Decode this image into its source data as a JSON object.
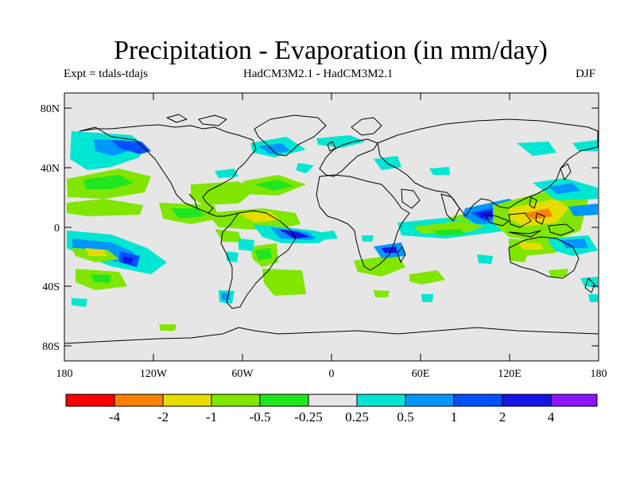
{
  "figure": {
    "title": "Precipitation - Evaporation (in mm/day)",
    "experiment": "Expt = tdals-tdajs",
    "models": "HadCM3M2.1 - HadCM3M2.1",
    "season": "DJF"
  },
  "map": {
    "projection": "cylindrical equidistant",
    "lon_range": [
      -180,
      180
    ],
    "lat_range": [
      -90,
      90
    ],
    "lat_ticks": [
      {
        "value": 80,
        "label": "80N"
      },
      {
        "value": 40,
        "label": "40N"
      },
      {
        "value": 0,
        "label": "0"
      },
      {
        "value": -40,
        "label": "40S"
      },
      {
        "value": -80,
        "label": "80S"
      }
    ],
    "lon_ticks": [
      {
        "value": -180,
        "label": "180"
      },
      {
        "value": -120,
        "label": "120W"
      },
      {
        "value": -60,
        "label": "60W"
      },
      {
        "value": 0,
        "label": "0"
      },
      {
        "value": 60,
        "label": "60E"
      },
      {
        "value": 120,
        "label": "120E"
      },
      {
        "value": 180,
        "label": "180"
      }
    ],
    "background_color": "#e6e6e6"
  },
  "colorbar": {
    "boundaries": [
      "-4",
      "-2",
      "-1",
      "-0.5",
      "-0.25",
      "0.25",
      "0.5",
      "1",
      "2",
      "4"
    ],
    "colors": [
      "#ff0000",
      "#ff8000",
      "#e6dc00",
      "#80e600",
      "#20e620",
      "#e6e6e6",
      "#00e6d2",
      "#0096ff",
      "#0050ff",
      "#1414e6",
      "#8c14ff"
    ]
  },
  "features": [
    {
      "name": "north-pacific-wet",
      "lon": -160,
      "lat": 30,
      "color": "#00e6d2"
    },
    {
      "name": "gulf-of-alaska-wet",
      "lon": -140,
      "lat": 56,
      "color": "#0096ff"
    },
    {
      "name": "north-atlantic-dry",
      "lon": -40,
      "lat": 42,
      "color": "#20e620"
    },
    {
      "name": "tropical-atlantic-wet",
      "lon": -25,
      "lat": -3,
      "color": "#1414e6"
    },
    {
      "name": "maritime-continent-dry",
      "lon": 125,
      "lat": 5,
      "color": "#e6dc00"
    },
    {
      "name": "indian-ocean-wet",
      "lon": 90,
      "lat": 5,
      "color": "#0050ff"
    },
    {
      "name": "south-pacific-dry",
      "lon": -155,
      "lat": -15,
      "color": "#e6dc00"
    }
  ]
}
